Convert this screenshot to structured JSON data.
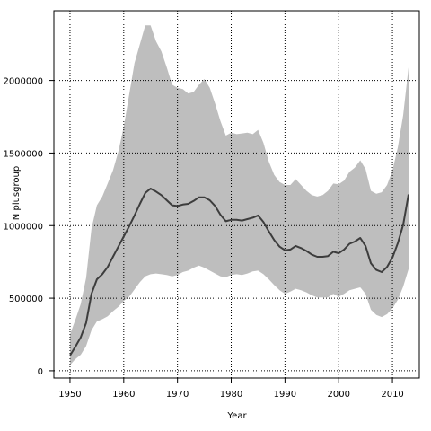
{
  "chart_data": {
    "type": "area",
    "title": "",
    "xlabel": "Year",
    "ylabel": "N plusgroup",
    "xlim": [
      1947,
      2015
    ],
    "ylim": [
      -50000,
      2480000
    ],
    "xticks": [
      1950,
      1960,
      1970,
      1980,
      1990,
      2000,
      2010
    ],
    "xtick_labels": [
      "1950",
      "1960",
      "1970",
      "1980",
      "1990",
      "2000",
      "2010"
    ],
    "yticks": [
      0,
      500000,
      1000000,
      1500000,
      2000000
    ],
    "ytick_labels": [
      "0",
      "500000",
      "1000000",
      "1500000",
      "2000000"
    ],
    "grid": true,
    "legend": "none",
    "colors": {
      "band": "#bebebe",
      "line": "#3d3d3d",
      "grid": "#000000"
    },
    "x": [
      1950,
      1951,
      1952,
      1953,
      1954,
      1955,
      1956,
      1957,
      1958,
      1959,
      1960,
      1961,
      1962,
      1963,
      1964,
      1965,
      1966,
      1967,
      1968,
      1969,
      1970,
      1971,
      1972,
      1973,
      1974,
      1975,
      1976,
      1977,
      1978,
      1979,
      1980,
      1981,
      1982,
      1983,
      1984,
      1985,
      1986,
      1987,
      1988,
      1989,
      1990,
      1991,
      1992,
      1993,
      1994,
      1995,
      1996,
      1997,
      1998,
      1999,
      2000,
      2001,
      2002,
      2003,
      2004,
      2005,
      2006,
      2007,
      2008,
      2009,
      2010,
      2011,
      2012,
      2013
    ],
    "series": [
      {
        "values": [
          105000,
          165000,
          230000,
          330000,
          530000,
          630000,
          665000,
          715000,
          785000,
          855000,
          925000,
          995000,
          1070000,
          1150000,
          1225000,
          1255000,
          1235000,
          1210000,
          1175000,
          1140000,
          1135000,
          1145000,
          1150000,
          1170000,
          1195000,
          1195000,
          1175000,
          1135000,
          1075000,
          1030000,
          1040000,
          1040000,
          1035000,
          1045000,
          1055000,
          1070000,
          1025000,
          960000,
          900000,
          855000,
          830000,
          835000,
          860000,
          845000,
          825000,
          800000,
          785000,
          785000,
          790000,
          820000,
          810000,
          835000,
          875000,
          890000,
          915000,
          860000,
          740000,
          695000,
          680000,
          715000,
          780000,
          880000,
          1005000,
          1215000
        ]
      }
    ],
    "band": {
      "lower": [
        40000,
        80000,
        110000,
        170000,
        280000,
        340000,
        355000,
        375000,
        410000,
        440000,
        480000,
        510000,
        560000,
        610000,
        650000,
        665000,
        670000,
        665000,
        660000,
        650000,
        660000,
        680000,
        690000,
        710000,
        725000,
        710000,
        690000,
        670000,
        650000,
        645000,
        660000,
        665000,
        660000,
        670000,
        685000,
        690000,
        665000,
        630000,
        590000,
        555000,
        530000,
        545000,
        565000,
        555000,
        540000,
        520000,
        505000,
        505000,
        505000,
        530000,
        510000,
        530000,
        555000,
        565000,
        575000,
        530000,
        420000,
        385000,
        370000,
        390000,
        430000,
        490000,
        580000,
        700000
      ],
      "upper": [
        250000,
        350000,
        460000,
        640000,
        980000,
        1140000,
        1200000,
        1290000,
        1380000,
        1510000,
        1680000,
        1900000,
        2120000,
        2250000,
        2380000,
        2380000,
        2270000,
        2200000,
        2090000,
        1970000,
        1950000,
        1940000,
        1910000,
        1920000,
        1970000,
        2010000,
        1950000,
        1840000,
        1720000,
        1620000,
        1640000,
        1630000,
        1635000,
        1640000,
        1630000,
        1660000,
        1570000,
        1440000,
        1350000,
        1300000,
        1280000,
        1280000,
        1320000,
        1280000,
        1240000,
        1210000,
        1200000,
        1210000,
        1240000,
        1290000,
        1285000,
        1310000,
        1370000,
        1400000,
        1450000,
        1390000,
        1240000,
        1220000,
        1230000,
        1280000,
        1380000,
        1540000,
        1760000,
        2090000
      ]
    }
  }
}
